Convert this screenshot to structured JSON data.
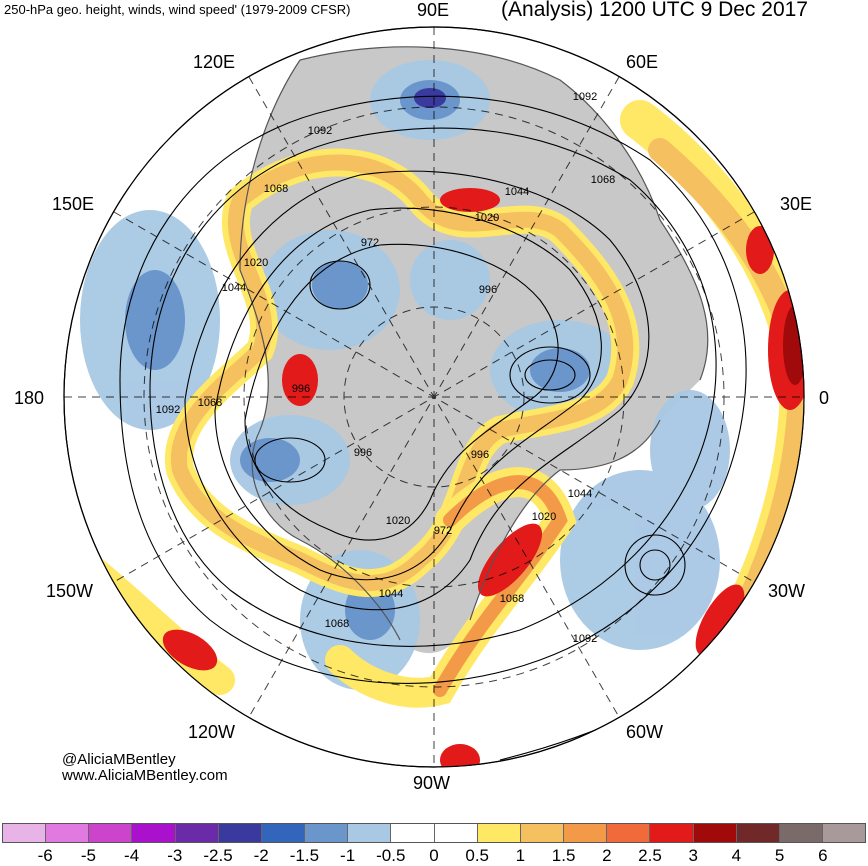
{
  "header": {
    "left_title": "250-hPa geo. height, winds, wind speed' (1979-2009 CFSR)",
    "right_title": "(Analysis) 1200 UTC 9 Dec 2017"
  },
  "longitude_labels": {
    "top": "90E",
    "upper_left": "120E",
    "upper_right": "60E",
    "left_upper": "150E",
    "right_upper": "30E",
    "left": "180",
    "right": "0",
    "left_lower": "150W",
    "right_lower": "30W",
    "lower_left": "120W",
    "lower_right": "60W",
    "bottom": "90W"
  },
  "contour_labels": [
    "1092",
    "1092",
    "1068",
    "1068",
    "1044",
    "1044",
    "1020",
    "1020",
    "972",
    "996",
    "1092",
    "1068",
    "996",
    "996",
    "996",
    "1044",
    "1020",
    "1020",
    "972",
    "1044",
    "1068",
    "1068",
    "1092"
  ],
  "credits": {
    "twitter": "@AliciaMBentley",
    "website": "www.AliciaMBentley.com"
  },
  "colorbar": {
    "labels": [
      "-6",
      "-5",
      "-4",
      "-3",
      "-2.5",
      "-2",
      "-1.5",
      "-1",
      "-0.5",
      "0",
      "0.5",
      "1",
      "1.5",
      "2",
      "2.5",
      "3",
      "4",
      "5",
      "6"
    ],
    "colors": [
      "#e8b4e8",
      "#e07ae0",
      "#cc44cc",
      "#aa11cc",
      "#6b2aa8",
      "#3a3a9e",
      "#3366bb",
      "#6b96cc",
      "#a8c8e4",
      "#ffffff",
      "#ffffff",
      "#ffe866",
      "#f5c060",
      "#f29a48",
      "#f06a3a",
      "#e21a1a",
      "#a00a0a",
      "#702828",
      "#7a6a6a",
      "#a89a9a"
    ]
  },
  "colors": {
    "land_gray": "#c8c8c8",
    "coast": "#555555",
    "contour": "#000000"
  }
}
